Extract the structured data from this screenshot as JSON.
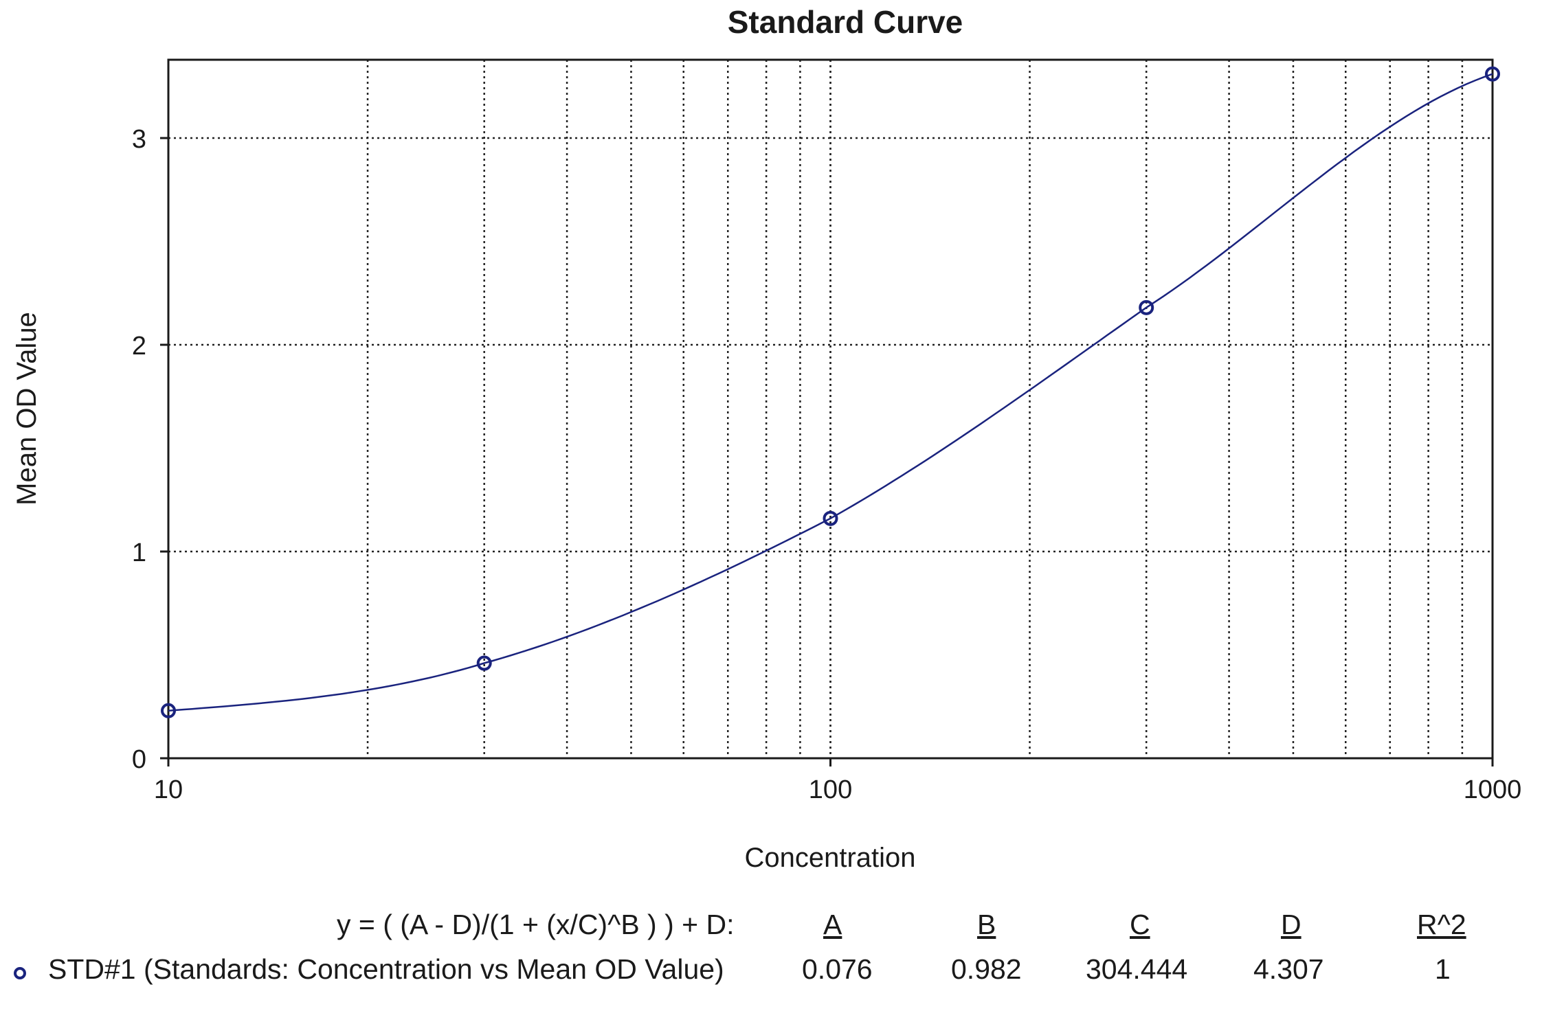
{
  "chart_data": {
    "type": "scatter",
    "title": "Standard Curve",
    "xlabel": "Concentration",
    "ylabel": "Mean OD Value",
    "x_scale": "log",
    "xlim": [
      10,
      1000
    ],
    "ylim": [
      0,
      3.4
    ],
    "x_ticks": [
      "10",
      "100",
      "1000"
    ],
    "y_ticks": [
      "0",
      "1",
      "2",
      "3"
    ],
    "grid": true,
    "series": [
      {
        "name": "STD#1 (Standards: Concentration vs Mean OD Value)",
        "color": "#1a237e",
        "marker": "open-circle",
        "points": [
          {
            "x": 10,
            "y": 0.23
          },
          {
            "x": 30,
            "y": 0.46
          },
          {
            "x": 100,
            "y": 1.16
          },
          {
            "x": 300,
            "y": 2.18
          },
          {
            "x": 1000,
            "y": 3.31
          }
        ]
      }
    ],
    "fit": {
      "equation": "y = ( (A - D)/(1 + (x/C)^B ) ) + D:",
      "headers": [
        "A",
        "B",
        "C",
        "D",
        "R^2"
      ],
      "values": [
        "0.076",
        "0.982",
        "304.444",
        "4.307",
        "1"
      ]
    }
  }
}
